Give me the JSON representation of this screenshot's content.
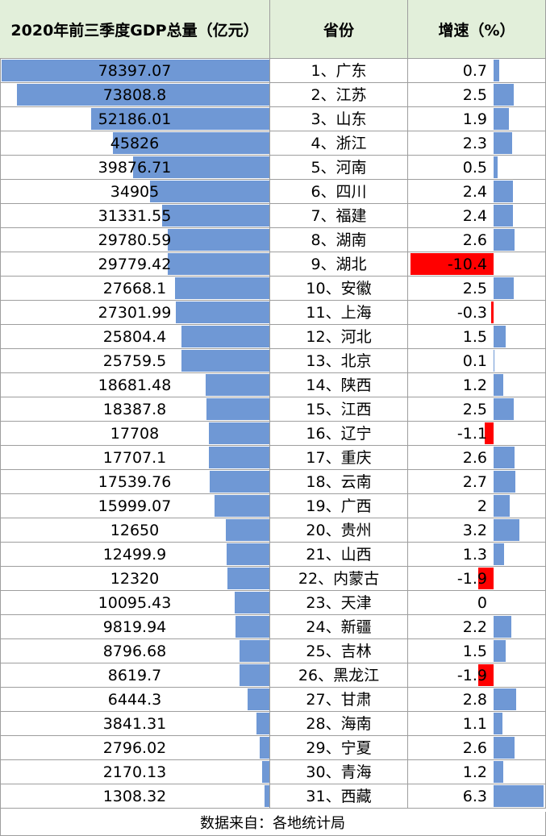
{
  "headers": {
    "gdp": "2020年前三季度GDP总量（亿元）",
    "province": "省份",
    "growth": "增速（%）"
  },
  "footer": "数据来自：各地统计局",
  "colors": {
    "gdp_bar": "#6f98d5",
    "growth_positive": "#6f98d5",
    "growth_negative": "#ff0000",
    "header_bg": "#e2efda"
  },
  "chart_data": {
    "type": "table",
    "rows": [
      {
        "gdp": "78397.07",
        "province": "1、广东",
        "growth": "0.7"
      },
      {
        "gdp": "73808.8",
        "province": "2、江苏",
        "growth": "2.5"
      },
      {
        "gdp": "52186.01",
        "province": "3、山东",
        "growth": "1.9"
      },
      {
        "gdp": "45826",
        "province": "4、浙江",
        "growth": "2.3"
      },
      {
        "gdp": "39876.71",
        "province": "5、河南",
        "growth": "0.5"
      },
      {
        "gdp": "34905",
        "province": "6、四川",
        "growth": "2.4"
      },
      {
        "gdp": "31331.55",
        "province": "7、福建",
        "growth": "2.4"
      },
      {
        "gdp": "29780.59",
        "province": "8、湖南",
        "growth": "2.6"
      },
      {
        "gdp": "29779.42",
        "province": "9、湖北",
        "growth": "-10.4"
      },
      {
        "gdp": "27668.1",
        "province": "10、安徽",
        "growth": "2.5"
      },
      {
        "gdp": "27301.99",
        "province": "11、上海",
        "growth": "-0.3"
      },
      {
        "gdp": "25804.4",
        "province": "12、河北",
        "growth": "1.5"
      },
      {
        "gdp": "25759.5",
        "province": "13、北京",
        "growth": "0.1"
      },
      {
        "gdp": "18681.48",
        "province": "14、陕西",
        "growth": "1.2"
      },
      {
        "gdp": "18387.8",
        "province": "15、江西",
        "growth": "2.5"
      },
      {
        "gdp": "17708",
        "province": "16、辽宁",
        "growth": "-1.1"
      },
      {
        "gdp": "17707.1",
        "province": "17、重庆",
        "growth": "2.6"
      },
      {
        "gdp": "17539.76",
        "province": "18、云南",
        "growth": "2.7"
      },
      {
        "gdp": "15999.07",
        "province": "19、广西",
        "growth": "2"
      },
      {
        "gdp": "12650",
        "province": "20、贵州",
        "growth": "3.2"
      },
      {
        "gdp": "12499.9",
        "province": "21、山西",
        "growth": "1.3"
      },
      {
        "gdp": "12320",
        "province": "22、内蒙古",
        "growth": "-1.9"
      },
      {
        "gdp": "10095.43",
        "province": "23、天津",
        "growth": "0"
      },
      {
        "gdp": "9819.94",
        "province": "24、新疆",
        "growth": "2.2"
      },
      {
        "gdp": "8796.68",
        "province": "25、吉林",
        "growth": "1.5"
      },
      {
        "gdp": "8619.7",
        "province": "26、黑龙江",
        "growth": "-1.9"
      },
      {
        "gdp": "6444.3",
        "province": "27、甘肃",
        "growth": "2.8"
      },
      {
        "gdp": "3841.31",
        "province": "28、海南",
        "growth": "1.1"
      },
      {
        "gdp": "2796.02",
        "province": "29、宁夏",
        "growth": "2.6"
      },
      {
        "gdp": "2170.13",
        "province": "30、青海",
        "growth": "1.2"
      },
      {
        "gdp": "1308.32",
        "province": "31、西藏",
        "growth": "6.3"
      }
    ],
    "gdp_bar_max": 78397.07,
    "growth_range": [
      -10.4,
      6.3
    ]
  }
}
